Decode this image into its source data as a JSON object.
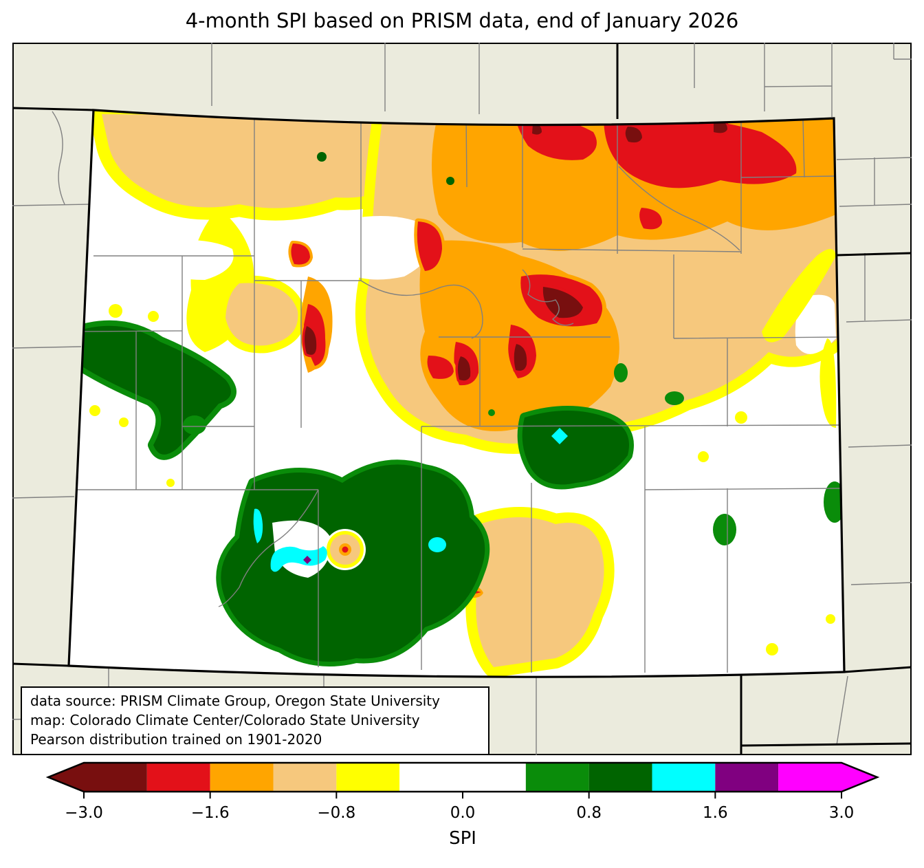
{
  "title": "4-month SPI based on PRISM data, end of January 2026",
  "map": {
    "region_label": "Colorado",
    "background_color": "#ebebdd",
    "county_line_color": "#808080",
    "state_line_color": "#000000"
  },
  "annotation_box": {
    "lines": [
      "data source: PRISM Climate Group, Oregon State University",
      "map: Colorado Climate Center/Colorado State University",
      "Pearson distribution trained on 1901-2020"
    ]
  },
  "colorbar": {
    "label": "SPI",
    "ticks": [
      {
        "value": -3.0,
        "label": "−3.0"
      },
      {
        "value": -1.6,
        "label": "−1.6"
      },
      {
        "value": -0.8,
        "label": "−0.8"
      },
      {
        "value": 0.0,
        "label": "0.0"
      },
      {
        "value": 0.8,
        "label": "0.8"
      },
      {
        "value": 1.6,
        "label": "1.6"
      },
      {
        "value": 3.0,
        "label": "3.0"
      }
    ],
    "classes": [
      {
        "key": "maroon",
        "color": "#780f0f",
        "range": [
          -3.0,
          -2.0
        ],
        "units": 1,
        "arrow": "left"
      },
      {
        "key": "red",
        "color": "#e31119",
        "range": [
          -2.0,
          -1.6
        ],
        "units": 1
      },
      {
        "key": "orange",
        "color": "#ffa500",
        "range": [
          -1.6,
          -1.3
        ],
        "units": 1
      },
      {
        "key": "tan",
        "color": "#f6c87d",
        "range": [
          -1.3,
          -0.8
        ],
        "units": 1
      },
      {
        "key": "yellow",
        "color": "#ffff00",
        "range": [
          -0.8,
          -0.5
        ],
        "units": 1
      },
      {
        "key": "white",
        "color": "#ffffff",
        "range": [
          -0.5,
          0.5
        ],
        "units": 2
      },
      {
        "key": "green",
        "color": "#0a8c0a",
        "range": [
          0.5,
          0.8
        ],
        "units": 1
      },
      {
        "key": "darkgreen",
        "color": "#006400",
        "range": [
          0.8,
          1.3
        ],
        "units": 1
      },
      {
        "key": "cyan",
        "color": "#00ffff",
        "range": [
          1.3,
          1.6
        ],
        "units": 1
      },
      {
        "key": "purple",
        "color": "#800080",
        "range": [
          1.6,
          2.0
        ],
        "units": 1
      },
      {
        "key": "magenta",
        "color": "#ff00ff",
        "range": [
          2.0,
          3.0
        ],
        "units": 1,
        "arrow": "right"
      }
    ]
  },
  "chart_data": {
    "type": "choropleth_map",
    "title": "4-month SPI based on PRISM data, end of January 2026",
    "region": "Colorado with neighboring state edges",
    "variable": "4-month Standardized Precipitation Index (SPI), Pearson distribution trained on 1901-2020",
    "legend_position": "bottom horizontal colorbar",
    "colorbar_label": "SPI",
    "colorbar_tick_values": [
      -3.0,
      -1.6,
      -0.8,
      0.0,
      0.8,
      1.6,
      3.0
    ],
    "class_breaks": [
      -3.0,
      -2.0,
      -1.6,
      -1.3,
      -0.8,
      -0.5,
      0.5,
      0.8,
      1.3,
      1.6,
      2.0,
      3.0
    ],
    "pattern_summary": "Severe dryness (orange/red/dark-red, SPI -1.3 to below -2) over north-central and northeast Colorado; mild dryness (yellow/tan) in northwest and south-central; near normal (white) in west-central and southeast; wet areas (green/dark green, SPI 0.5-1.3) in southwest, south-central and east-central mountains with small very wet cyan/purple pockets (SPI 1.3-2.0)"
  }
}
